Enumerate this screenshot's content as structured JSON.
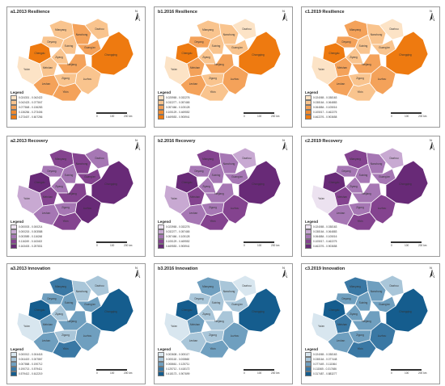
{
  "scale": {
    "zero": "0",
    "mid": "100",
    "end": "200 km"
  },
  "north_label": "N",
  "legend_title": "Legend",
  "cities": [
    "Mianyang",
    "Deyang",
    "Nanchong",
    "Dazhou",
    "Suining",
    "Guang'an",
    "Chengdu",
    "Chongqing",
    "Meishan",
    "Ziyang",
    "Neijiang",
    "Ya'an",
    "Leshan",
    "Zigong",
    "Yibin",
    "Luzhou"
  ],
  "rows": [
    {
      "name": "Resilience",
      "colors": [
        "#fce3c6",
        "#f9c48e",
        "#f4a25a",
        "#f08a2e",
        "#ee7a10"
      ],
      "panels": [
        {
          "title": "a1.2013 Resilience",
          "legend": [
            "0.024301 - 0.042422",
            "0.042423 - 0.077847",
            "0.077848 - 0.136283",
            "0.136284 - 0.273406",
            "0.273407 - 0.607256"
          ],
          "classes": [
            1,
            1,
            2,
            1,
            1,
            2,
            4,
            4,
            1,
            1,
            2,
            0,
            2,
            1,
            2,
            1
          ]
        },
        {
          "title": "b1.2016 Resilience",
          "legend": [
            "0.025965 - 0.032276",
            "0.032277 - 0.057465",
            "0.057466 - 0.105128",
            "0.105129 - 0.469552",
            "0.469553 - 0.905941"
          ],
          "classes": [
            1,
            2,
            1,
            0,
            1,
            1,
            4,
            4,
            2,
            1,
            2,
            0,
            2,
            1,
            1,
            2
          ]
        },
        {
          "title": "c1.2019 Resilience",
          "legend": [
            "0.024065 - 0.038163",
            "0.038164 - 0.064883",
            "0.064884 - 0.105016",
            "0.105017 - 0.462275",
            "0.462276 - 0.903658"
          ],
          "classes": [
            2,
            2,
            1,
            0,
            1,
            1,
            4,
            4,
            2,
            1,
            2,
            0,
            2,
            1,
            1,
            2
          ]
        }
      ]
    },
    {
      "name": "Recovery",
      "colors": [
        "#ece2f0",
        "#c8a9d2",
        "#a677b4",
        "#84438f",
        "#682a77"
      ],
      "panels": [
        {
          "title": "a2.2013 Recovery",
          "legend": [
            "0.000003 - 0.000214",
            "0.000215 - 0.003588",
            "0.003589 - 0.116248",
            "0.116249 - 0.163402",
            "0.163403 - 0.257831"
          ],
          "classes": [
            3,
            2,
            3,
            2,
            2,
            3,
            4,
            4,
            3,
            2,
            3,
            1,
            2,
            2,
            3,
            4
          ]
        },
        {
          "title": "b2.2016 Recovery",
          "legend": [
            "0.023965 - 0.032276",
            "0.032277 - 0.057465",
            "0.057466 - 0.105128",
            "0.105129 - 0.469552",
            "0.469553 - 0.905941"
          ],
          "classes": [
            3,
            2,
            2,
            1,
            2,
            2,
            4,
            4,
            3,
            2,
            2,
            1,
            2,
            2,
            3,
            3
          ]
        },
        {
          "title": "c2.2019 Recovery",
          "legend": [
            "0.024065 - 0.038163",
            "0.038164 - 0.064883",
            "0.064884 - 0.105016",
            "0.105017 - 0.462275",
            "0.462276 - 0.903658"
          ],
          "classes": [
            3,
            2,
            2,
            1,
            2,
            2,
            4,
            4,
            3,
            2,
            2,
            0,
            2,
            2,
            3,
            3
          ]
        }
      ]
    },
    {
      "name": "Innovation",
      "colors": [
        "#d8e6ef",
        "#a9c6d9",
        "#6f9fbf",
        "#3a78a4",
        "#155d8e"
      ],
      "panels": [
        {
          "title": "a3.2013 Innovation",
          "legend": [
            "0.000012 - 0.004418",
            "0.004419 - 0.007867",
            "0.007868 - 0.190712",
            "0.190713 - 0.579411",
            "0.579412 - 0.612219"
          ],
          "classes": [
            3,
            2,
            1,
            1,
            2,
            2,
            4,
            4,
            2,
            1,
            2,
            0,
            2,
            1,
            3,
            2
          ]
        },
        {
          "title": "b3.2016 Innovation",
          "legend": [
            "0.003608 - 0.005117",
            "0.005118 - 0.008660",
            "0.008661 - 0.125711",
            "0.125712 - 0.418172",
            "0.418173 - 0.907699"
          ],
          "classes": [
            2,
            1,
            1,
            0,
            1,
            1,
            4,
            4,
            2,
            1,
            1,
            0,
            1,
            1,
            2,
            2
          ]
        },
        {
          "title": "c3.2019 Innovation",
          "legend": [
            "0.024065 - 0.038163",
            "0.038164 - 0.077448",
            "0.077449 - 0.111564",
            "0.111565 - 0.317486",
            "0.317487 - 0.883277"
          ],
          "classes": [
            3,
            2,
            2,
            1,
            2,
            2,
            4,
            4,
            3,
            2,
            2,
            0,
            2,
            2,
            3,
            3
          ]
        }
      ]
    }
  ]
}
